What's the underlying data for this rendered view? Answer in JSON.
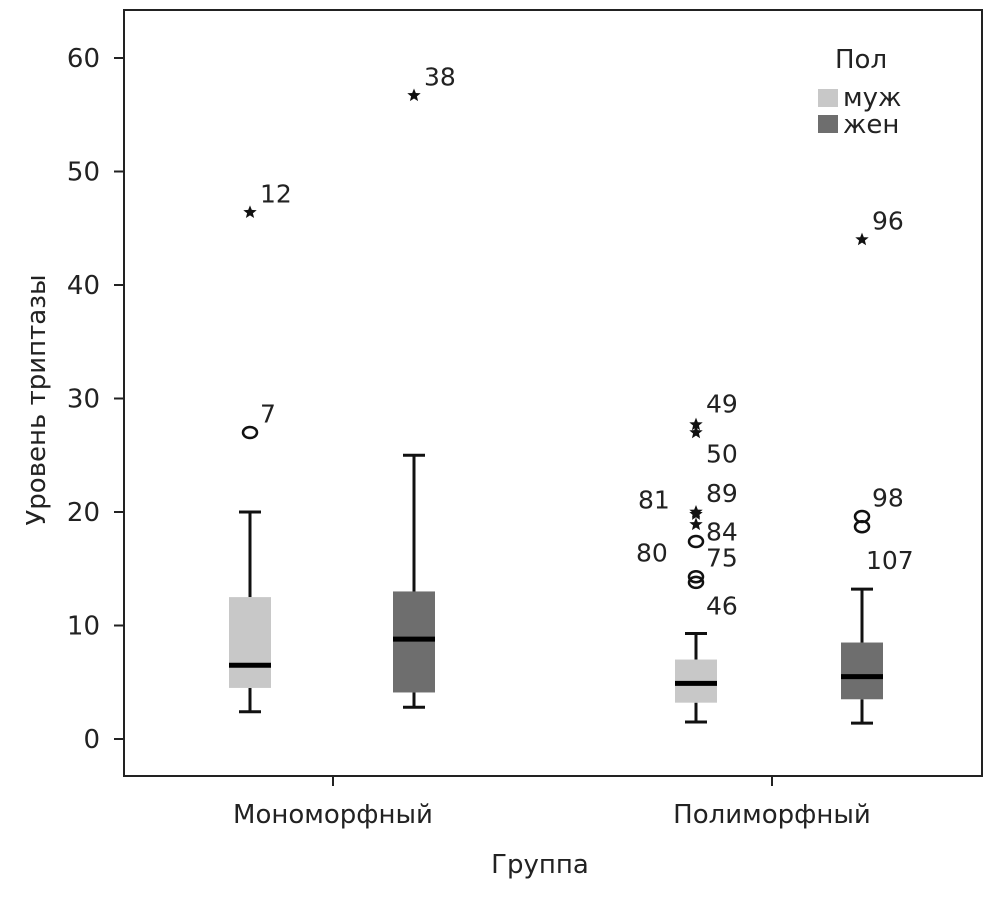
{
  "chart_data": {
    "type": "boxplot",
    "title": "",
    "xlabel": "Группа",
    "ylabel": "Уровень триптазы",
    "ylim": [
      -3,
      64
    ],
    "yticks": [
      0,
      10,
      20,
      30,
      40,
      50,
      60
    ],
    "categories": [
      "Мономорфный",
      "Полиморфный"
    ],
    "legend": {
      "title": "Пол",
      "position": "top-right",
      "entries": [
        {
          "name": "муж",
          "color": "#c8c8c8"
        },
        {
          "name": "жен",
          "color": "#6e6e6e"
        }
      ]
    },
    "boxes": [
      {
        "category": "Мономорфный",
        "series": "муж",
        "min": 2.4,
        "q1": 4.5,
        "median": 6.5,
        "q3": 12.5,
        "max": 20,
        "outliers": [
          {
            "id": "7",
            "value": 27,
            "marker": "circle"
          },
          {
            "id": "12",
            "value": 46.4,
            "marker": "star"
          }
        ]
      },
      {
        "category": "Мономорфный",
        "series": "жен",
        "min": 2.8,
        "q1": 4.1,
        "median": 8.8,
        "q3": 13,
        "max": 25,
        "outliers": [
          {
            "id": "38",
            "value": 56.7,
            "marker": "star"
          }
        ]
      },
      {
        "category": "Полиморфный",
        "series": "муж",
        "min": 1.5,
        "q1": 3.2,
        "median": 4.9,
        "q3": 7.0,
        "max": 9.3,
        "outliers": [
          {
            "id": "49",
            "value": 27.7,
            "marker": "star"
          },
          {
            "id": "50",
            "value": 27.0,
            "marker": "star"
          },
          {
            "id": "89",
            "value": 20.0,
            "marker": "star"
          },
          {
            "id": "81",
            "value": 19.8,
            "marker": "star"
          },
          {
            "id": "84",
            "value": 18.9,
            "marker": "star"
          },
          {
            "id": "80",
            "value": 17.4,
            "marker": "circle"
          },
          {
            "id": "75",
            "value": 14.3,
            "marker": "circle"
          },
          {
            "id": "46",
            "value": 13.8,
            "marker": "circle"
          }
        ]
      },
      {
        "category": "Полиморфный",
        "series": "жен",
        "min": 1.4,
        "q1": 3.5,
        "median": 5.5,
        "q3": 8.5,
        "max": 13.2,
        "outliers": [
          {
            "id": "98",
            "value": 19.6,
            "marker": "circle"
          },
          {
            "id": "107",
            "value": 18.7,
            "marker": "circle"
          },
          {
            "id": "96",
            "value": 44,
            "marker": "star"
          }
        ]
      }
    ]
  }
}
